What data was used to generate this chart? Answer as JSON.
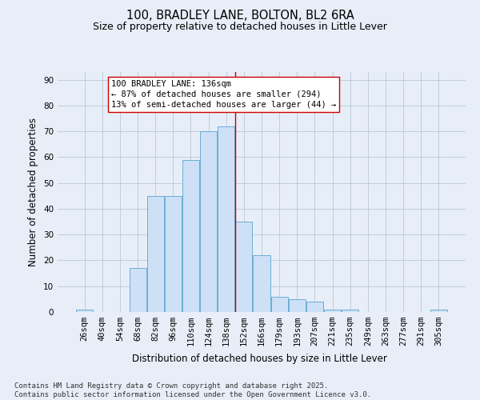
{
  "title": "100, BRADLEY LANE, BOLTON, BL2 6RA",
  "subtitle": "Size of property relative to detached houses in Little Lever",
  "xlabel": "Distribution of detached houses by size in Little Lever",
  "ylabel": "Number of detached properties",
  "bar_labels": [
    "26sqm",
    "40sqm",
    "54sqm",
    "68sqm",
    "82sqm",
    "96sqm",
    "110sqm",
    "124sqm",
    "138sqm",
    "152sqm",
    "166sqm",
    "179sqm",
    "193sqm",
    "207sqm",
    "221sqm",
    "235sqm",
    "249sqm",
    "263sqm",
    "277sqm",
    "291sqm",
    "305sqm"
  ],
  "bar_values": [
    1,
    0,
    0,
    17,
    45,
    45,
    59,
    70,
    72,
    35,
    22,
    6,
    5,
    4,
    1,
    1,
    0,
    0,
    0,
    0,
    1
  ],
  "bar_color": "#cde0f5",
  "bar_edge_color": "#6aaed6",
  "background_color": "#e8eef8",
  "grid_color": "#b8c8dc",
  "red_line_x": 8.5,
  "annotation_text": "100 BRADLEY LANE: 136sqm\n← 87% of detached houses are smaller (294)\n13% of semi-detached houses are larger (44) →",
  "annotation_box_facecolor": "#ffffff",
  "annotation_box_edgecolor": "#cc0000",
  "ylim": [
    0,
    93
  ],
  "yticks": [
    0,
    10,
    20,
    30,
    40,
    50,
    60,
    70,
    80,
    90
  ],
  "footer": "Contains HM Land Registry data © Crown copyright and database right 2025.\nContains public sector information licensed under the Open Government Licence v3.0.",
  "title_fontsize": 10.5,
  "subtitle_fontsize": 9,
  "xlabel_fontsize": 8.5,
  "ylabel_fontsize": 8.5,
  "tick_fontsize": 7.5,
  "annotation_fontsize": 7.5,
  "footer_fontsize": 6.5
}
